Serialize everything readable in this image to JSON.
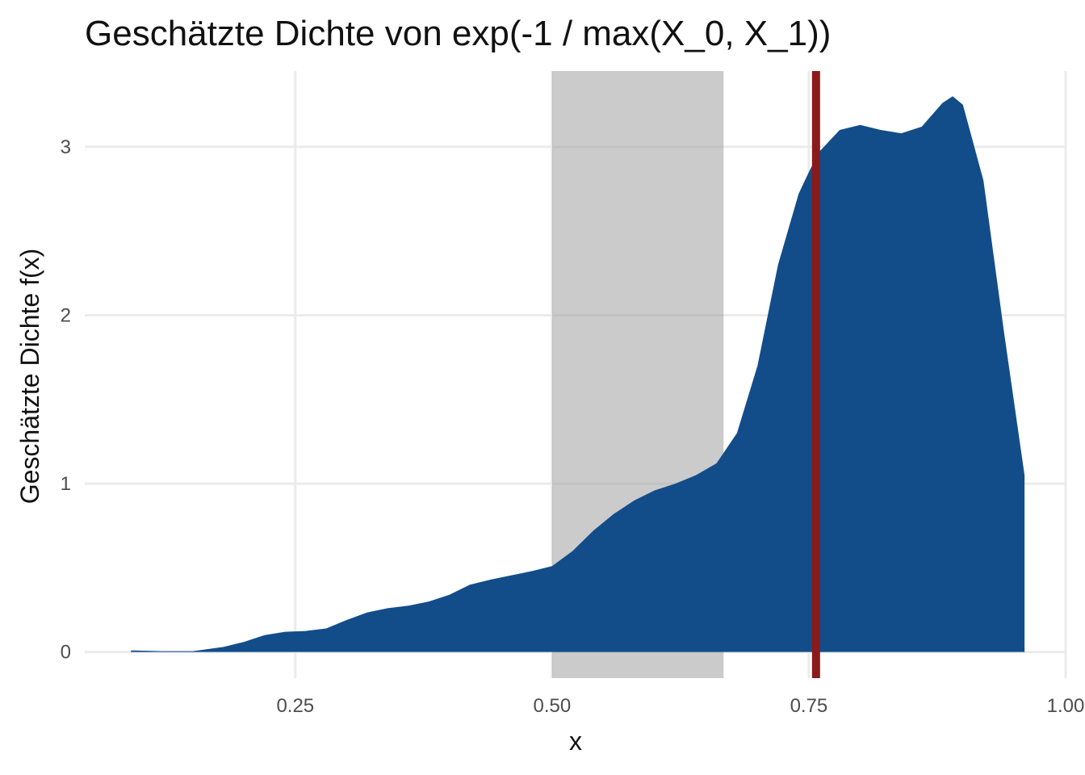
{
  "chart_data": {
    "type": "area",
    "title": "Geschätzte Dichte von exp(-1 / max(X_0, X_1))",
    "xlabel": "x",
    "ylabel": "Geschätzte Dichte f(x)",
    "xlim": [
      0.045,
      1.0
    ],
    "ylim": [
      -0.155,
      3.45
    ],
    "x_ticks": [
      0.25,
      0.5,
      0.75,
      1.0
    ],
    "x_tick_labels": [
      "0.25",
      "0.50",
      "0.75",
      "1.00"
    ],
    "y_ticks": [
      0,
      1,
      2,
      3
    ],
    "y_tick_labels": [
      "0",
      "1",
      "2",
      "3"
    ],
    "grid": true,
    "series": [
      {
        "x": [
          0.09,
          0.12,
          0.15,
          0.18,
          0.2,
          0.22,
          0.24,
          0.26,
          0.28,
          0.3,
          0.32,
          0.34,
          0.36,
          0.38,
          0.4,
          0.42,
          0.44,
          0.46,
          0.48,
          0.5,
          0.52,
          0.54,
          0.56,
          0.58,
          0.6,
          0.62,
          0.64,
          0.66,
          0.68,
          0.7,
          0.72,
          0.74,
          0.75,
          0.76,
          0.78,
          0.8,
          0.82,
          0.84,
          0.86,
          0.88,
          0.89,
          0.9,
          0.92,
          0.94,
          0.96
        ],
        "y": [
          0.01,
          0.005,
          0.005,
          0.03,
          0.06,
          0.1,
          0.12,
          0.125,
          0.14,
          0.19,
          0.235,
          0.26,
          0.275,
          0.3,
          0.34,
          0.4,
          0.43,
          0.455,
          0.48,
          0.51,
          0.6,
          0.72,
          0.82,
          0.9,
          0.96,
          1.0,
          1.05,
          1.12,
          1.3,
          1.7,
          2.3,
          2.72,
          2.85,
          2.97,
          3.1,
          3.13,
          3.1,
          3.08,
          3.12,
          3.26,
          3.3,
          3.25,
          2.8,
          1.9,
          1.05
        ],
        "fill": "#124d8a"
      }
    ],
    "shaded_interval": {
      "x": [
        0.5,
        0.667
      ],
      "color": "#a0a0a0"
    },
    "reference_line": {
      "x": 0.757,
      "color": "#8b1a1a"
    }
  }
}
